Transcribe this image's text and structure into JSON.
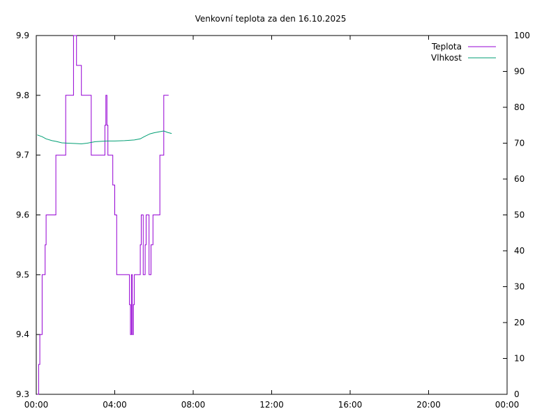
{
  "chart_data": {
    "type": "line",
    "title": "Venkovní teplota za den 16.10.2025",
    "x_ticks": [
      "00:00",
      "04:00",
      "08:00",
      "12:00",
      "16:00",
      "20:00",
      "00:00"
    ],
    "xlim_hours": [
      0,
      24
    ],
    "ylim_left": [
      9.3,
      9.9
    ],
    "y_left_ticks": [
      "9.3",
      "9.4",
      "9.5",
      "9.6",
      "9.7",
      "9.8",
      "9.9"
    ],
    "ylim_right": [
      0,
      100
    ],
    "y_right_ticks": [
      "0",
      "10",
      "20",
      "30",
      "40",
      "50",
      "60",
      "70",
      "80",
      "90",
      "100"
    ],
    "legend_position": "top-right",
    "grid": false,
    "series": [
      {
        "name": "Teplota",
        "axis": "left",
        "color": "#9400d3",
        "step": true,
        "points": [
          [
            0.05,
            9.3
          ],
          [
            0.12,
            9.35
          ],
          [
            0.18,
            9.4
          ],
          [
            0.3,
            9.5
          ],
          [
            0.45,
            9.55
          ],
          [
            0.5,
            9.6
          ],
          [
            1.0,
            9.7
          ],
          [
            1.5,
            9.8
          ],
          [
            1.9,
            9.9
          ],
          [
            2.05,
            9.85
          ],
          [
            2.3,
            9.8
          ],
          [
            2.8,
            9.7
          ],
          [
            3.5,
            9.75
          ],
          [
            3.55,
            9.8
          ],
          [
            3.6,
            9.75
          ],
          [
            3.65,
            9.7
          ],
          [
            3.9,
            9.65
          ],
          [
            4.0,
            9.6
          ],
          [
            4.1,
            9.5
          ],
          [
            4.75,
            9.45
          ],
          [
            4.8,
            9.4
          ],
          [
            4.85,
            9.5
          ],
          [
            4.9,
            9.4
          ],
          [
            4.95,
            9.45
          ],
          [
            5.0,
            9.5
          ],
          [
            5.3,
            9.55
          ],
          [
            5.35,
            9.6
          ],
          [
            5.45,
            9.5
          ],
          [
            5.55,
            9.55
          ],
          [
            5.6,
            9.6
          ],
          [
            5.75,
            9.5
          ],
          [
            5.85,
            9.55
          ],
          [
            5.95,
            9.6
          ],
          [
            6.3,
            9.7
          ],
          [
            6.5,
            9.8
          ],
          [
            6.75,
            9.8
          ]
        ]
      },
      {
        "name": "Vlhkost",
        "axis": "right",
        "color": "#009e73",
        "step": false,
        "points": [
          [
            0.05,
            72.3
          ],
          [
            0.3,
            71.8
          ],
          [
            0.5,
            71.2
          ],
          [
            0.8,
            70.7
          ],
          [
            1.0,
            70.5
          ],
          [
            1.3,
            70.1
          ],
          [
            1.6,
            70.0
          ],
          [
            2.0,
            69.9
          ],
          [
            2.3,
            69.8
          ],
          [
            2.6,
            70.0
          ],
          [
            3.0,
            70.4
          ],
          [
            3.3,
            70.5
          ],
          [
            3.6,
            70.6
          ],
          [
            4.0,
            70.6
          ],
          [
            4.5,
            70.7
          ],
          [
            5.0,
            70.9
          ],
          [
            5.3,
            71.2
          ],
          [
            5.5,
            71.8
          ],
          [
            5.8,
            72.6
          ],
          [
            6.0,
            72.9
          ],
          [
            6.3,
            73.2
          ],
          [
            6.5,
            73.4
          ],
          [
            6.7,
            73.0
          ],
          [
            6.9,
            72.7
          ]
        ]
      }
    ]
  }
}
